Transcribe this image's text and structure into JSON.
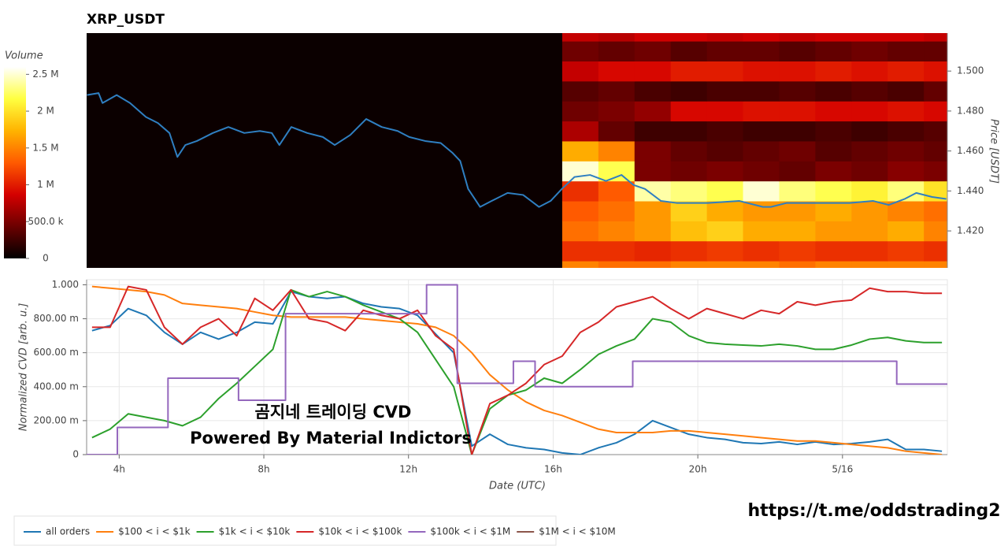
{
  "chart_data": [
    {
      "type": "heatmap",
      "title": "XRP_USDT",
      "y_label": "Price [USDT]",
      "xlim": [
        3.1,
        26.9
      ],
      "ylim": [
        1.4015,
        1.519
      ],
      "yticks": [
        {
          "value": 1.42,
          "label": "1.420"
        },
        {
          "value": 1.44,
          "label": "1.440"
        },
        {
          "value": 1.46,
          "label": "1.460"
        },
        {
          "value": 1.48,
          "label": "1.480"
        },
        {
          "value": 1.5,
          "label": "1.500"
        }
      ],
      "background": "#0b0000",
      "x_edges": [
        16.25,
        17.25,
        18.25,
        19.25,
        20.25,
        21.25,
        22.25,
        23.25,
        24.25,
        25.25,
        26.25,
        26.9
      ],
      "y_edges": [
        1.395,
        1.405,
        1.415,
        1.425,
        1.435,
        1.445,
        1.455,
        1.465,
        1.475,
        1.485,
        1.495,
        1.505,
        1.515,
        1.525
      ],
      "z": [
        [
          1500000,
          1400000,
          1400000,
          1500000,
          1500000,
          1500000,
          1400000,
          1500000,
          1500000,
          1500000,
          1500000
        ],
        [
          1100000,
          1100000,
          1050000,
          1100000,
          1150000,
          1100000,
          1150000,
          1100000,
          1100000,
          1150000,
          1100000
        ],
        [
          1400000,
          1500000,
          1600000,
          1800000,
          1900000,
          1700000,
          1700000,
          1600000,
          1600000,
          1700000,
          1500000
        ],
        [
          1300000,
          1400000,
          1600000,
          1900000,
          1700000,
          1600000,
          1600000,
          1700000,
          1600000,
          1500000,
          1400000
        ],
        [
          1100000,
          1300000,
          2400000,
          2300000,
          2200000,
          2500000,
          2300000,
          2200000,
          2100000,
          2300000,
          2000000
        ],
        [
          2500000,
          2200000,
          500000,
          450000,
          500000,
          450000,
          400000,
          500000,
          450000,
          550000,
          500000
        ],
        [
          1700000,
          1500000,
          500000,
          400000,
          350000,
          400000,
          450000,
          350000,
          400000,
          450000,
          400000
        ],
        [
          700000,
          400000,
          250000,
          250000,
          300000,
          250000,
          250000,
          300000,
          250000,
          300000,
          350000
        ],
        [
          450000,
          500000,
          600000,
          900000,
          900000,
          950000,
          950000,
          900000,
          900000,
          950000,
          900000
        ],
        [
          350000,
          400000,
          300000,
          250000,
          300000,
          300000,
          350000,
          300000,
          350000,
          300000,
          400000
        ],
        [
          800000,
          900000,
          900000,
          1000000,
          1000000,
          950000,
          950000,
          1000000,
          950000,
          1000000,
          950000
        ],
        [
          450000,
          400000,
          450000,
          350000,
          400000,
          400000,
          350000,
          400000,
          450000,
          400000,
          400000
        ],
        [
          800000,
          750000,
          850000,
          850000,
          800000,
          850000,
          800000,
          850000,
          850000,
          850000,
          800000
        ]
      ],
      "zlim": [
        0,
        2600000
      ],
      "colormap": [
        "#000000",
        "#6b0000",
        "#d40000",
        "#ff5a00",
        "#ffb300",
        "#ffff40",
        "#ffffff"
      ],
      "colorbar": {
        "label": "Volume",
        "ticks": [
          0,
          {
            "value": 500000,
            "label": "500.0 k"
          },
          {
            "value": 1000000,
            "label": "1 M"
          },
          {
            "value": 1500000,
            "label": "1.5 M"
          },
          {
            "value": 2000000,
            "label": "2 M"
          },
          {
            "value": 2500000,
            "label": "2.5 M"
          }
        ]
      },
      "series": [
        {
          "color": "#2f7fc1",
          "x": [
            3.11,
            3.43,
            3.54,
            3.93,
            4.3,
            4.74,
            5.07,
            5.39,
            5.61,
            5.83,
            6.15,
            6.59,
            7.02,
            7.46,
            7.89,
            8.22,
            8.43,
            8.76,
            9.2,
            9.63,
            9.96,
            10.39,
            10.83,
            11.26,
            11.7,
            12.02,
            12.46,
            12.89,
            13.22,
            13.43,
            13.65,
            13.98,
            14.3,
            14.74,
            15.17,
            15.61,
            15.93,
            16.24,
            16.59,
            17.02,
            17.46,
            17.89,
            18.22,
            18.54,
            18.98,
            19.41,
            20.28,
            21.15,
            21.8,
            22.02,
            22.46,
            23.33,
            24.2,
            24.85,
            25.28,
            25.72,
            26.04,
            26.48,
            26.87
          ],
          "values": [
            1.488,
            1.489,
            1.484,
            1.488,
            1.484,
            1.477,
            1.474,
            1.469,
            1.457,
            1.463,
            1.465,
            1.469,
            1.472,
            1.469,
            1.47,
            1.469,
            1.463,
            1.472,
            1.469,
            1.467,
            1.463,
            1.468,
            1.476,
            1.472,
            1.47,
            1.467,
            1.465,
            1.464,
            1.459,
            1.455,
            1.441,
            1.432,
            1.435,
            1.439,
            1.438,
            1.432,
            1.435,
            1.441,
            1.447,
            1.448,
            1.445,
            1.448,
            1.443,
            1.441,
            1.435,
            1.434,
            1.434,
            1.435,
            1.432,
            1.432,
            1.434,
            1.434,
            1.434,
            1.435,
            1.433,
            1.436,
            1.439,
            1.437,
            1.436
          ]
        }
      ]
    },
    {
      "type": "line",
      "x_label": "Date (UTC)",
      "y_label": "Normalized CVD [arb. u.]",
      "xlim": [
        3.1,
        26.9
      ],
      "ylim": [
        0,
        1.03
      ],
      "xticks": [
        {
          "value": 4,
          "label": "4h"
        },
        {
          "value": 8,
          "label": "8h"
        },
        {
          "value": 12,
          "label": "12h"
        },
        {
          "value": 16,
          "label": "16h"
        },
        {
          "value": 20,
          "label": "20h"
        },
        {
          "value": 24,
          "label": "5/16"
        }
      ],
      "yticks": [
        0,
        {
          "value": 0.2,
          "label": "200.00 m"
        },
        {
          "value": 0.4,
          "label": "400.00 m"
        },
        {
          "value": 0.6,
          "label": "600.00 m"
        },
        {
          "value": 0.8,
          "label": "800.00 m"
        },
        {
          "value": 1,
          "label": "1.000"
        }
      ],
      "grid": true,
      "annotations": [
        "곰지네 트레이딩 CVD",
        "Powered By Material Indictors"
      ],
      "x": [
        3.25,
        3.75,
        4.25,
        4.75,
        5.25,
        5.75,
        6.25,
        6.75,
        7.25,
        7.75,
        8.25,
        8.75,
        9.25,
        9.75,
        10.25,
        10.75,
        11.25,
        11.75,
        12.25,
        12.75,
        13.25,
        13.75,
        14.25,
        14.75,
        15.25,
        15.75,
        16.25,
        16.75,
        17.25,
        17.75,
        18.25,
        18.75,
        19.25,
        19.75,
        20.25,
        20.75,
        21.25,
        21.75,
        22.25,
        22.75,
        23.25,
        23.75,
        24.25,
        24.75,
        25.25,
        25.75,
        26.25,
        26.75
      ],
      "series": [
        {
          "name": "all orders",
          "color": "#1f77b4",
          "values": [
            0.73,
            0.76,
            0.86,
            0.82,
            0.72,
            0.65,
            0.72,
            0.68,
            0.72,
            0.78,
            0.77,
            0.96,
            0.93,
            0.92,
            0.93,
            0.89,
            0.87,
            0.86,
            0.82,
            0.71,
            0.6,
            0.05,
            0.12,
            0.06,
            0.04,
            0.03,
            0.01,
            0.0,
            0.04,
            0.07,
            0.12,
            0.2,
            0.16,
            0.12,
            0.1,
            0.09,
            0.07,
            0.065,
            0.075,
            0.06,
            0.075,
            0.06,
            0.065,
            0.075,
            0.09,
            0.03,
            0.03,
            0.02
          ]
        },
        {
          "name": "$100 < i < $1k",
          "color": "#ff7f0e",
          "values": [
            0.99,
            0.98,
            0.97,
            0.96,
            0.94,
            0.89,
            0.88,
            0.87,
            0.86,
            0.84,
            0.82,
            0.81,
            0.81,
            0.81,
            0.81,
            0.8,
            0.79,
            0.78,
            0.77,
            0.75,
            0.7,
            0.6,
            0.47,
            0.38,
            0.31,
            0.26,
            0.23,
            0.19,
            0.15,
            0.13,
            0.13,
            0.13,
            0.14,
            0.14,
            0.13,
            0.12,
            0.11,
            0.1,
            0.09,
            0.08,
            0.08,
            0.07,
            0.06,
            0.05,
            0.04,
            0.02,
            0.01,
            0.0
          ]
        },
        {
          "name": "$1k < i < $10k",
          "color": "#2ca02c",
          "values": [
            0.1,
            0.15,
            0.24,
            0.22,
            0.2,
            0.17,
            0.22,
            0.33,
            0.42,
            0.52,
            0.62,
            0.97,
            0.93,
            0.96,
            0.93,
            0.88,
            0.84,
            0.8,
            0.72,
            0.56,
            0.4,
            0.0,
            0.27,
            0.35,
            0.38,
            0.45,
            0.42,
            0.5,
            0.59,
            0.64,
            0.68,
            0.8,
            0.78,
            0.7,
            0.66,
            0.65,
            0.645,
            0.64,
            0.65,
            0.64,
            0.62,
            0.62,
            0.645,
            0.68,
            0.69,
            0.67,
            0.66,
            0.66
          ]
        },
        {
          "name": "$10k < i < $100k",
          "color": "#d62728",
          "values": [
            0.75,
            0.75,
            0.99,
            0.97,
            0.75,
            0.65,
            0.75,
            0.8,
            0.7,
            0.92,
            0.85,
            0.97,
            0.8,
            0.78,
            0.73,
            0.85,
            0.82,
            0.8,
            0.85,
            0.7,
            0.62,
            0.0,
            0.3,
            0.35,
            0.42,
            0.53,
            0.58,
            0.72,
            0.78,
            0.87,
            0.9,
            0.93,
            0.86,
            0.8,
            0.86,
            0.83,
            0.8,
            0.85,
            0.83,
            0.9,
            0.88,
            0.9,
            0.91,
            0.98,
            0.96,
            0.96,
            0.95,
            0.95
          ]
        },
        {
          "name": "$100k < i < $1M",
          "color": "#9467bd",
          "x": [
            3.1,
            3.95,
            3.95,
            5.35,
            5.35,
            7.3,
            7.3,
            8.6,
            8.6,
            12.5,
            12.5,
            13.35,
            13.35,
            14.9,
            14.9,
            15.5,
            15.5,
            18.2,
            18.2,
            25.5,
            25.5,
            26.9
          ],
          "values": [
            0,
            0,
            0.16,
            0.16,
            0.45,
            0.45,
            0.32,
            0.32,
            0.83,
            0.83,
            1,
            1,
            0.42,
            0.42,
            0.55,
            0.55,
            0.4,
            0.4,
            0.55,
            0.55,
            0.415,
            0.415
          ]
        },
        {
          "name": "$1M < i < $10M",
          "color": "#8c564b"
        }
      ]
    }
  ],
  "footer_link": "https://t.me/oddstrading2"
}
